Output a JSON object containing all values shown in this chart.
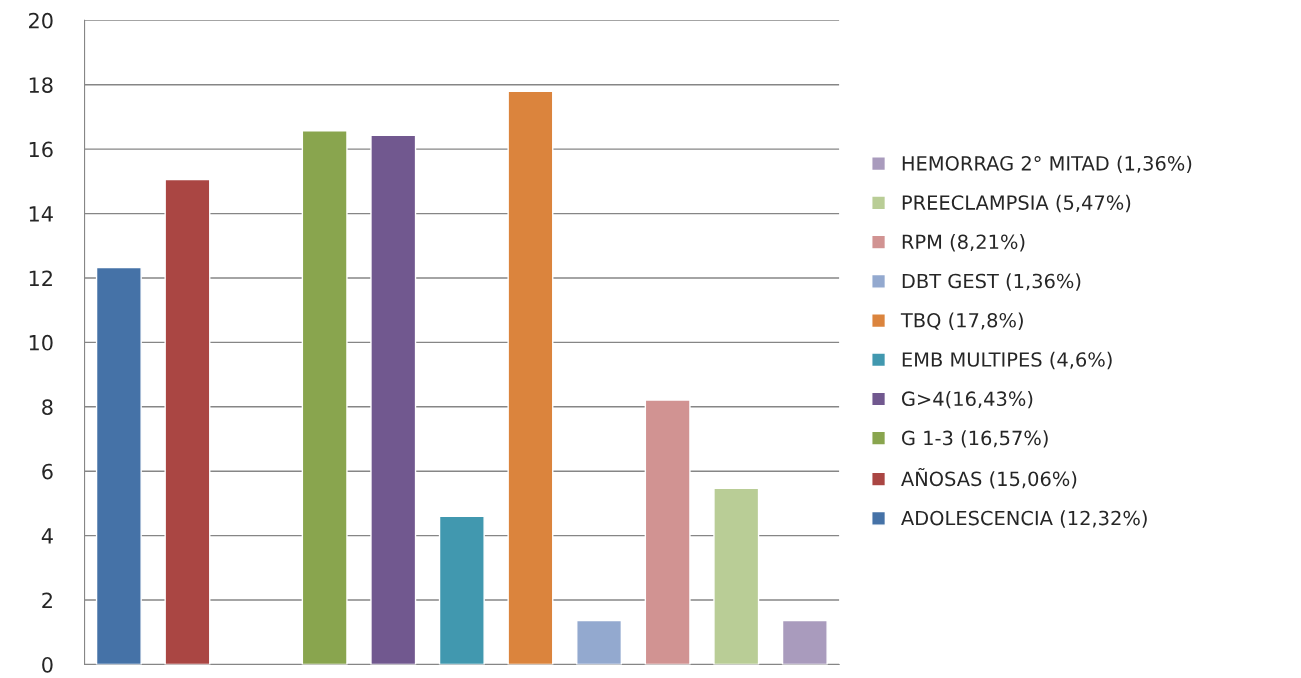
{
  "chart_data": {
    "type": "bar",
    "categories": [
      null,
      null,
      null,
      null,
      null,
      null,
      null,
      null,
      null,
      null,
      null
    ],
    "series": [
      {
        "name": "ADOLESCENCIA (12,32%)",
        "color": "#4572a7",
        "values": [
          12.32,
          null,
          null,
          null,
          null,
          null,
          null,
          null,
          null,
          null,
          null
        ]
      },
      {
        "name": "AÑOSAS (15,06%)",
        "color": "#aa4643",
        "values": [
          null,
          15.06,
          null,
          null,
          null,
          null,
          null,
          null,
          null,
          null,
          null
        ]
      },
      {
        "name": "G 1-3 (16,57%)",
        "color": "#89a54e",
        "values": [
          null,
          null,
          null,
          16.57,
          null,
          null,
          null,
          null,
          null,
          null,
          null
        ]
      },
      {
        "name": "G>4(16,43%)",
        "color": "#71588f",
        "values": [
          null,
          null,
          null,
          null,
          16.43,
          null,
          null,
          null,
          null,
          null,
          null
        ]
      },
      {
        "name": "EMB MULTIPES (4,6%)",
        "color": "#4198af",
        "values": [
          null,
          null,
          null,
          null,
          null,
          4.6,
          null,
          null,
          null,
          null,
          null
        ]
      },
      {
        "name": "TBQ (17,8%)",
        "color": "#db843d",
        "values": [
          null,
          null,
          null,
          null,
          null,
          null,
          17.8,
          null,
          null,
          null,
          null
        ]
      },
      {
        "name": "DBT GEST (1,36%)",
        "color": "#93a9cf",
        "values": [
          null,
          null,
          null,
          null,
          null,
          null,
          null,
          1.36,
          null,
          null,
          null
        ]
      },
      {
        "name": "RPM (8,21%)",
        "color": "#d19392",
        "values": [
          null,
          null,
          null,
          null,
          null,
          null,
          null,
          null,
          8.21,
          null,
          null
        ]
      },
      {
        "name": "PREECLAMPSIA (5,47%)",
        "color": "#b9cd96",
        "values": [
          null,
          null,
          null,
          null,
          null,
          null,
          null,
          null,
          null,
          5.47,
          null
        ]
      },
      {
        "name": "HEMORRAG 2° MITAD (1,36%)",
        "color": "#a99bbd",
        "values": [
          null,
          null,
          null,
          null,
          null,
          null,
          null,
          null,
          null,
          null,
          1.36
        ]
      }
    ],
    "ylim": [
      0,
      20
    ],
    "yticks": [
      0,
      2,
      4,
      6,
      8,
      10,
      12,
      14,
      16,
      18,
      20
    ],
    "grid": "y",
    "legend": "right"
  }
}
